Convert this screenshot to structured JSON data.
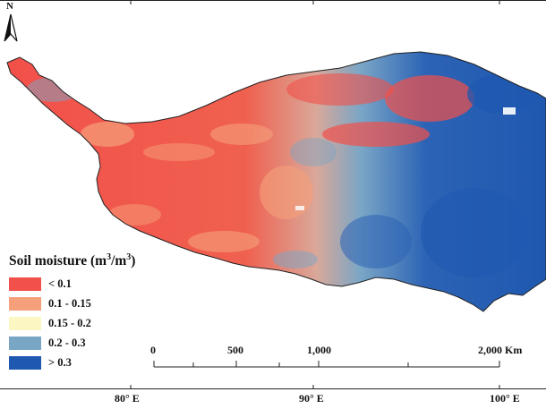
{
  "legend": {
    "title_main": "Soil moisture (m",
    "title_sup1": "3",
    "title_mid": "/m",
    "title_sup2": "3",
    "title_end": ")",
    "classes": [
      {
        "label": "< 0.1",
        "color": "#f2504a"
      },
      {
        "label": "0.1 - 0.15",
        "color": "#f5a07a"
      },
      {
        "label": "0.15 - 0.2",
        "color": "#fbf6c2"
      },
      {
        "label": "0.2 - 0.3",
        "color": "#7aa6c6"
      },
      {
        "label": "> 0.3",
        "color": "#1f58b0"
      }
    ]
  },
  "scale_bar": {
    "labels": [
      "0",
      "500",
      "1,000",
      "2,000 Km"
    ]
  },
  "longitude_labels": [
    "80° E",
    "90° E",
    "100° E"
  ],
  "north_arrow": {
    "label": "N",
    "icon": "north-arrow-icon"
  }
}
